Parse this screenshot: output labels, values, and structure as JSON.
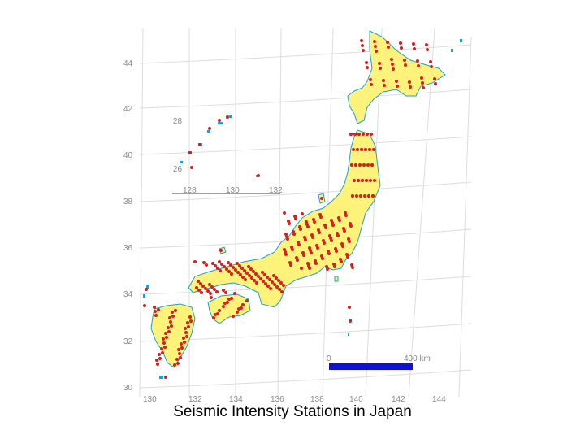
{
  "caption": "Seismic Intensity Stations in Japan",
  "latitude_labels": [
    "44",
    "42",
    "40",
    "38",
    "36",
    "34",
    "32",
    "30"
  ],
  "longitude_labels": [
    "130",
    "132",
    "134",
    "136",
    "138",
    "140",
    "142",
    "144"
  ],
  "inset": {
    "latitude_labels": [
      "28",
      "26"
    ],
    "longitude_labels": [
      "128",
      "130",
      "132"
    ]
  },
  "scale_bar": {
    "start_label": "0",
    "end_label": "400 km",
    "color": "#1010dd"
  },
  "colors": {
    "land": "#fdf27a",
    "station": "#d81e1e",
    "coast": "#1a9fd8",
    "graticule": "#dcdcdc"
  }
}
